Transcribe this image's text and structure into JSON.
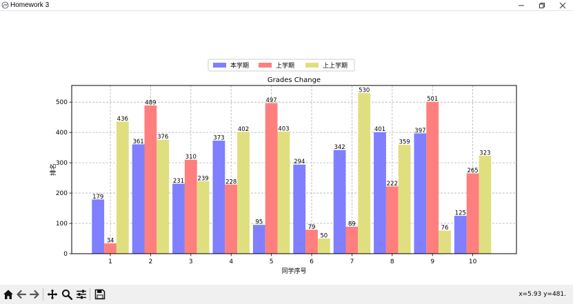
{
  "window": {
    "title": "Homework 3"
  },
  "toolbar": {
    "buttons": [
      "home-icon",
      "back-icon",
      "forward-icon",
      "pan-icon",
      "zoom-icon",
      "configure-subplots-icon",
      "save-icon"
    ],
    "coords": "x=5.93 y=481."
  },
  "chart_data": {
    "type": "bar",
    "title": "Grades Change",
    "xlabel": "同学序号",
    "ylabel": "排名",
    "categories": [
      "1",
      "2",
      "3",
      "4",
      "5",
      "6",
      "7",
      "8",
      "9",
      "10"
    ],
    "series": [
      {
        "name": "本学期",
        "color": "#7f7fff",
        "values": [
          179,
          361,
          231,
          373,
          95,
          294,
          342,
          401,
          397,
          125
        ]
      },
      {
        "name": "上学期",
        "color": "#ff7f7f",
        "values": [
          34,
          489,
          310,
          228,
          497,
          79,
          89,
          222,
          501,
          265
        ]
      },
      {
        "name": "上上学期",
        "color": "#dfdf7f",
        "values": [
          436,
          376,
          239,
          402,
          403,
          50,
          530,
          359,
          76,
          323
        ]
      }
    ],
    "ylim": [
      0,
      555
    ],
    "yticks": [
      0,
      100,
      200,
      300,
      400,
      500
    ],
    "grid": true,
    "legend": "top-center"
  }
}
